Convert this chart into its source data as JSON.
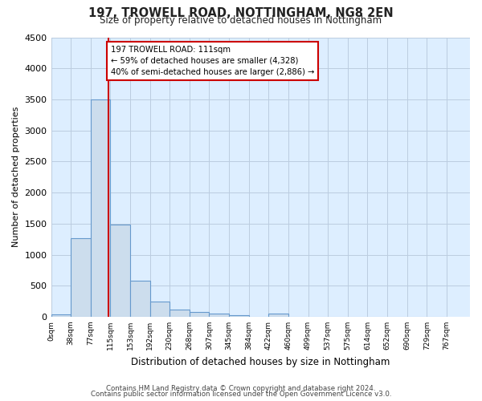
{
  "title_line1": "197, TROWELL ROAD, NOTTINGHAM, NG8 2EN",
  "title_line2": "Size of property relative to detached houses in Nottingham",
  "xlabel": "Distribution of detached houses by size in Nottingham",
  "ylabel": "Number of detached properties",
  "footer_line1": "Contains HM Land Registry data © Crown copyright and database right 2024.",
  "footer_line2": "Contains public sector information licensed under the Open Government Licence v3.0.",
  "bin_labels": [
    "0sqm",
    "38sqm",
    "77sqm",
    "115sqm",
    "153sqm",
    "192sqm",
    "230sqm",
    "268sqm",
    "307sqm",
    "345sqm",
    "384sqm",
    "422sqm",
    "460sqm",
    "499sqm",
    "537sqm",
    "575sqm",
    "614sqm",
    "652sqm",
    "690sqm",
    "729sqm",
    "767sqm"
  ],
  "bar_values": [
    40,
    1270,
    3500,
    1480,
    580,
    240,
    115,
    80,
    55,
    30,
    0,
    55,
    0,
    0,
    0,
    0,
    0,
    0,
    0,
    0
  ],
  "bar_color": "#ccdded",
  "bar_edge_color": "#6699cc",
  "grid_color": "#bbcce0",
  "background_color": "#ddeeff",
  "fig_background": "#ffffff",
  "vline_x_data": 111,
  "vline_color": "#cc0000",
  "annotation_line1": "197 TROWELL ROAD: 111sqm",
  "annotation_line2": "← 59% of detached houses are smaller (4,328)",
  "annotation_line3": "40% of semi-detached houses are larger (2,886) →",
  "annotation_box_color": "#cc0000",
  "annotation_bg": "#ffffff",
  "ylim": [
    0,
    4500
  ],
  "yticks": [
    0,
    500,
    1000,
    1500,
    2000,
    2500,
    3000,
    3500,
    4000,
    4500
  ],
  "bin_width": 38,
  "xlim_max": 805
}
